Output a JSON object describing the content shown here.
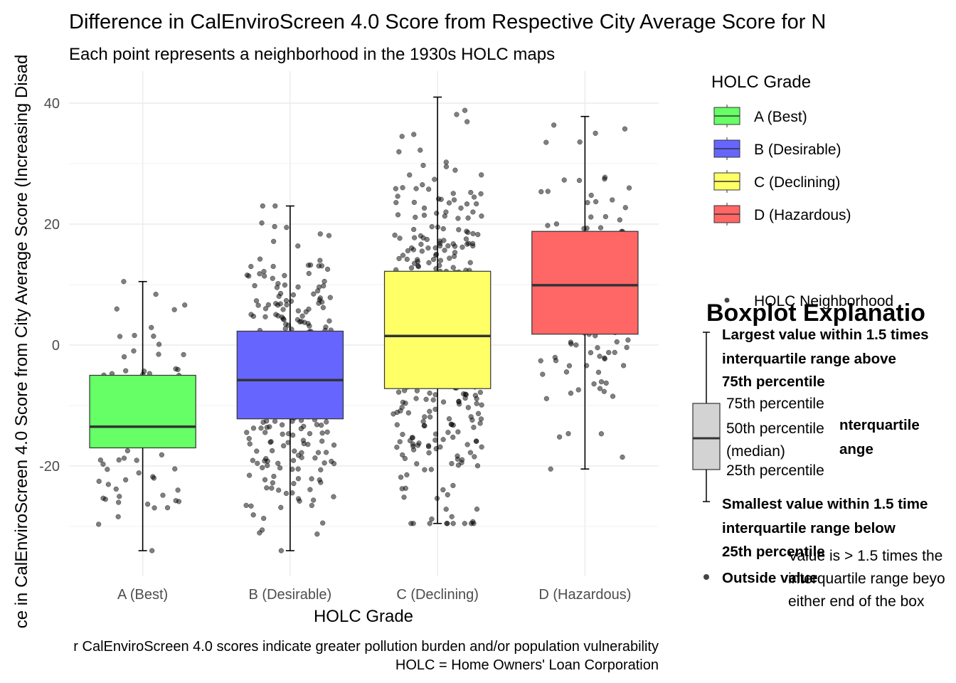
{
  "colors": {
    "A": "#66ff66",
    "B": "#6666ff",
    "C": "#ffff66",
    "D": "#ff6666",
    "grid": "#ebebeb",
    "point": "#000000",
    "median": "#333333"
  },
  "chart_data": {
    "type": "boxplot",
    "title": "Difference in CalEnviroScreen 4.0 Score from Respective City Average Score for N",
    "subtitle": "Each point represents a neighborhood in the 1930s HOLC maps",
    "xlabel": "HOLC Grade",
    "ylabel": "ce in CalEnviroScreen 4.0 Score from City Average Score (Increasing Disad",
    "caption_lines": [
      "r CalEnviroScreen 4.0 scores indicate greater pollution burden and/or population vulnerability",
      "HOLC = Home Owners' Loan Corporation"
    ],
    "ylim": [
      -40,
      45
    ],
    "yticks": [
      -20,
      0,
      20,
      40
    ],
    "grid": true,
    "legend_position": "right",
    "categories": [
      "A (Best)",
      "B (Desirable)",
      "C (Declining)",
      "D (Hazardous)"
    ],
    "boxes": [
      {
        "grade": "A",
        "whisker_low": -34,
        "q1": -17,
        "median": -13.5,
        "q3": -5,
        "whisker_high": 10.5,
        "n_points": 90
      },
      {
        "grade": "B",
        "whisker_low": -34,
        "q1": -12.2,
        "median": -5.8,
        "q3": 2.3,
        "whisker_high": 23,
        "n_points": 320
      },
      {
        "grade": "C",
        "whisker_low": -29.5,
        "q1": -7.2,
        "median": 1.5,
        "q3": 12.2,
        "whisker_high": 41,
        "n_points": 420
      },
      {
        "grade": "D",
        "whisker_low": -20.5,
        "q1": 1.8,
        "median": 9.9,
        "q3": 18.8,
        "whisker_high": 37.8,
        "n_points": 150
      }
    ]
  },
  "legend": {
    "title": "HOLC Grade",
    "items": [
      {
        "key": "A",
        "label": "A (Best)"
      },
      {
        "key": "B",
        "label": "B (Desirable)"
      },
      {
        "key": "C",
        "label": "C (Declining)"
      },
      {
        "key": "D",
        "label": "D (Hazardous)"
      }
    ]
  },
  "explanation": {
    "point_label": "HOLC Neighborhood",
    "title": "Boxplot Explanatio",
    "upper_whisker": [
      "Largest value within 1.5 times",
      "interquartile range above",
      "75th percentile"
    ],
    "iqr": [
      "nterquartile",
      "ange"
    ],
    "p75": "75th percentile",
    "p50": [
      "50th percentile",
      "(median)"
    ],
    "p25": "25th percentile",
    "lower_whisker": [
      "Smallest value within 1.5 time",
      "interquartile range below",
      "25th percentile"
    ],
    "outside_title": "Outside value",
    "outside_desc": [
      "Value is > 1.5 times the",
      "interquartile range beyo",
      "either end of the box"
    ]
  }
}
